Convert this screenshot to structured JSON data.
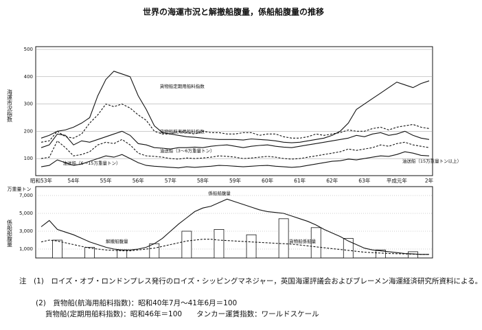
{
  "chart_data": [
    {
      "type": "line",
      "title": "世界の海運市況と解撤船腹量，係船船腹量の推移",
      "ylabel": "海運市況指数",
      "categories": [
        "昭和53年",
        null,
        null,
        null,
        "54年",
        null,
        null,
        null,
        "55年",
        null,
        null,
        null,
        "56年",
        null,
        null,
        null,
        "57年",
        null,
        null,
        null,
        "58年",
        null,
        null,
        null,
        "59年",
        null,
        null,
        null,
        "60年",
        null,
        null,
        null,
        "61年",
        null,
        null,
        null,
        "62年",
        null,
        null,
        null,
        "63年",
        null,
        null,
        null,
        "平成元年",
        null,
        null,
        null,
        "2年"
      ],
      "ylim": [
        40,
        500
      ],
      "yticks": [
        100,
        200,
        300,
        400,
        500
      ],
      "grid": true,
      "series": [
        {
          "name": "貨物船定期用船料指数",
          "color": "#111",
          "style": "solid",
          "values": [
            175,
            185,
            200,
            205,
            215,
            230,
            250,
            330,
            390,
            420,
            410,
            400,
            330,
            280,
            220,
            195,
            190,
            185,
            180,
            178,
            175,
            172,
            170,
            170,
            170,
            168,
            172,
            170,
            168,
            165,
            160,
            158,
            160,
            165,
            170,
            175,
            185,
            200,
            230,
            280,
            300,
            320,
            340,
            360,
            380,
            370,
            360,
            375,
            385
          ]
        },
        {
          "name": "貨物船航海用船料指数",
          "color": "#111",
          "style": "dashed",
          "values": [
            160,
            165,
            200,
            180,
            175,
            190,
            230,
            260,
            300,
            290,
            300,
            285,
            260,
            240,
            200,
            190,
            190,
            200,
            195,
            190,
            200,
            195,
            195,
            190,
            190,
            195,
            195,
            185,
            190,
            190,
            180,
            175,
            175,
            180,
            190,
            185,
            190,
            195,
            205,
            200,
            200,
            210,
            215,
            205,
            215,
            220,
            225,
            215,
            210
          ]
        },
        {
          "name": "油送船（3～6万重量トン）",
          "color": "#111",
          "style": "solid",
          "values": [
            140,
            150,
            190,
            185,
            150,
            165,
            160,
            170,
            180,
            190,
            200,
            185,
            155,
            150,
            140,
            138,
            135,
            140,
            140,
            142,
            140,
            145,
            148,
            150,
            145,
            140,
            145,
            148,
            150,
            145,
            142,
            140,
            145,
            150,
            155,
            160,
            165,
            170,
            175,
            185,
            180,
            190,
            195,
            185,
            190,
            200,
            185,
            175,
            170
          ]
        },
        {
          "name": "油送船（6～15万重量トン）",
          "color": "#111",
          "style": "dashed",
          "values": [
            100,
            105,
            165,
            140,
            110,
            115,
            125,
            150,
            160,
            155,
            170,
            150,
            120,
            110,
            108,
            105,
            100,
            98,
            102,
            100,
            102,
            105,
            110,
            108,
            105,
            100,
            102,
            105,
            108,
            105,
            100,
            98,
            100,
            105,
            110,
            115,
            120,
            125,
            135,
            130,
            135,
            140,
            150,
            145,
            155,
            160,
            150,
            145,
            140
          ]
        },
        {
          "name": "油送船（15万重量トン以上）",
          "color": "#111",
          "style": "solid",
          "values": [
            70,
            75,
            95,
            85,
            75,
            80,
            90,
            100,
            110,
            105,
            115,
            100,
            85,
            75,
            72,
            70,
            68,
            66,
            70,
            68,
            70,
            72,
            75,
            74,
            72,
            70,
            72,
            74,
            75,
            72,
            70,
            68,
            70,
            75,
            80,
            85,
            90,
            92,
            98,
            95,
            100,
            105,
            110,
            108,
            115,
            125,
            120,
            112,
            110
          ]
        }
      ]
    },
    {
      "type": "combo",
      "ylabel": "係船船腹量",
      "unit": "万重量トン",
      "categories": [
        null,
        null,
        null,
        null,
        null,
        null,
        null,
        null,
        null,
        null,
        null,
        null,
        null,
        null,
        null,
        null,
        null,
        null,
        null,
        null,
        null,
        null,
        null,
        null,
        null,
        null,
        null,
        null,
        null,
        null,
        null,
        null,
        null,
        null,
        null,
        null,
        null,
        null,
        null,
        null,
        null,
        null,
        null,
        null,
        null,
        null,
        null,
        null,
        null
      ],
      "ylim": [
        0,
        8000
      ],
      "grid": true,
      "yticks": [
        {
          "value": 1000,
          "label": "1,000"
        },
        {
          "value": 3000,
          "label": "3,000"
        },
        {
          "value": 5000,
          "label": "5,000"
        },
        {
          "value": 7000,
          "label": "7,000"
        }
      ],
      "series": [
        {
          "name": "解撤船腹量",
          "type": "bar",
          "color": "#111",
          "values": [
            null,
            null,
            2000,
            null,
            null,
            null,
            1200,
            null,
            null,
            null,
            900,
            null,
            null,
            null,
            1600,
            null,
            null,
            null,
            3000,
            null,
            null,
            null,
            3200,
            null,
            null,
            null,
            2600,
            null,
            null,
            null,
            4400,
            null,
            null,
            null,
            3400,
            null,
            null,
            null,
            2200,
            null,
            null,
            null,
            900,
            null,
            null,
            null,
            700,
            null,
            null
          ]
        },
        {
          "name": "係船船腹量",
          "type": "line",
          "color": "#111",
          "style": "solid",
          "values": [
            3500,
            4200,
            3200,
            2900,
            2600,
            2200,
            1800,
            1500,
            1200,
            1000,
            900,
            900,
            1000,
            1200,
            1600,
            2200,
            3000,
            3800,
            4500,
            5200,
            5600,
            5800,
            6200,
            6600,
            6300,
            6000,
            5700,
            5400,
            5200,
            5100,
            5000,
            4700,
            4400,
            4100,
            3700,
            3200,
            2800,
            2400,
            1900,
            1500,
            1100,
            900,
            800,
            700,
            600,
            500,
            450,
            400,
            400
          ]
        },
        {
          "name": "貨物船係船量",
          "type": "line",
          "color": "#111",
          "style": "dashed",
          "values": [
            1800,
            2000,
            1900,
            1700,
            1500,
            1300,
            1100,
            1000,
            900,
            850,
            800,
            800,
            900,
            1000,
            1100,
            1300,
            1500,
            1700,
            1900,
            2000,
            2100,
            2100,
            2000,
            1950,
            1900,
            1850,
            1800,
            1750,
            1700,
            1650,
            1600,
            1550,
            1450,
            1350,
            1250,
            1150,
            1050,
            950,
            850,
            750,
            650,
            600,
            550,
            500,
            480,
            450,
            420,
            400,
            400
          ]
        }
      ]
    }
  ],
  "notes": [
    "注　(1)　ロイズ・オブ・ロンドンプレス発行のロイズ・シッピングマネジャー，英国海運評議会およびブレーメン海運経済研究所資料による。",
    "(2)　貨物船(航海用船料指数)：昭和40年7月～41年6月＝100",
    "貨物船(定期用船料指数)：昭和46年＝100　　タンカー運賃指数：ワールドスケール"
  ]
}
